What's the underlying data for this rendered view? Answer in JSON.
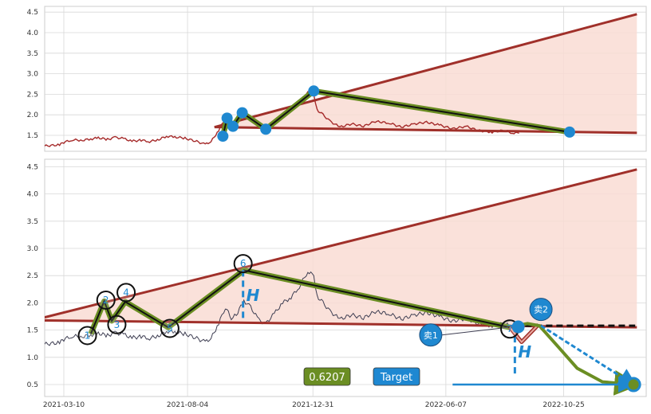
{
  "chart_data": {
    "type": "line",
    "x_ticks": [
      "2021-03-10",
      "2021-08-04",
      "2021-12-31",
      "2022-06-07",
      "2022-10-25"
    ],
    "y_ticks_top": [
      "1.5",
      "2.0",
      "2.5",
      "3.0",
      "3.5",
      "4.0",
      "4.5"
    ],
    "y_ticks_bottom": [
      "0.5",
      "1.0",
      "1.5",
      "2.0",
      "2.5",
      "3.0",
      "3.5",
      "4.0",
      "4.5"
    ],
    "ylim": [
      0.3,
      4.6
    ],
    "price_series": [
      [
        "2021-02-15",
        1.24
      ],
      [
        "2021-03-05",
        1.27
      ],
      [
        "2021-03-10",
        1.33
      ],
      [
        "2021-03-20",
        1.39
      ],
      [
        "2021-04-01",
        1.38
      ],
      [
        "2021-04-11",
        1.41
      ],
      [
        "2021-04-20",
        1.44
      ],
      [
        "2021-05-01",
        1.4
      ],
      [
        "2021-05-10",
        1.45
      ],
      [
        "2021-05-20",
        1.42
      ],
      [
        "2021-05-30",
        1.36
      ],
      [
        "2021-06-10",
        1.38
      ],
      [
        "2021-06-20",
        1.35
      ],
      [
        "2021-07-01",
        1.4
      ],
      [
        "2021-07-10",
        1.48
      ],
      [
        "2021-07-20",
        1.46
      ],
      [
        "2021-08-01",
        1.43
      ],
      [
        "2021-08-15",
        1.35
      ],
      [
        "2021-08-25",
        1.28
      ],
      [
        "2021-09-01",
        1.35
      ],
      [
        "2021-09-10",
        1.62
      ],
      [
        "2021-09-18",
        1.92
      ],
      [
        "2021-09-25",
        1.72
      ],
      [
        "2021-10-01",
        1.78
      ],
      [
        "2021-10-10",
        2.04
      ],
      [
        "2021-10-18",
        1.92
      ],
      [
        "2021-10-28",
        1.68
      ],
      [
        "2021-11-05",
        1.62
      ],
      [
        "2021-11-15",
        1.8
      ],
      [
        "2021-11-25",
        2.0
      ],
      [
        "2021-12-05",
        2.1
      ],
      [
        "2021-12-15",
        2.3
      ],
      [
        "2021-12-25",
        2.58
      ],
      [
        "2022-01-01",
        2.5
      ],
      [
        "2022-01-05",
        2.12
      ],
      [
        "2022-01-12",
        2.0
      ],
      [
        "2022-01-20",
        1.85
      ],
      [
        "2022-02-01",
        1.7
      ],
      [
        "2022-02-15",
        1.78
      ],
      [
        "2022-03-01",
        1.72
      ],
      [
        "2022-03-15",
        1.84
      ],
      [
        "2022-04-01",
        1.8
      ],
      [
        "2022-04-15",
        1.7
      ],
      [
        "2022-05-01",
        1.78
      ],
      [
        "2022-05-15",
        1.82
      ],
      [
        "2022-06-01",
        1.74
      ],
      [
        "2022-06-15",
        1.66
      ],
      [
        "2022-07-01",
        1.72
      ],
      [
        "2022-07-15",
        1.62
      ],
      [
        "2022-08-01",
        1.58
      ],
      [
        "2022-08-15",
        1.62
      ],
      [
        "2022-08-25",
        1.56
      ],
      [
        "2022-09-02",
        1.55
      ]
    ],
    "triangle": {
      "upper": [
        [
          "2021-09-05",
          1.7
        ],
        [
          "2023-01-20",
          4.45
        ]
      ],
      "lower": [
        [
          "2021-09-05",
          1.7
        ],
        [
          "2023-01-20",
          1.56
        ]
      ],
      "upper_bottom": [
        [
          "2021-02-01",
          1.68
        ],
        [
          "2023-01-20",
          4.45
        ]
      ],
      "lower_bottom": [
        [
          "2021-02-01",
          1.68
        ],
        [
          "2023-01-20",
          1.55
        ]
      ]
    },
    "zigzag_top": [
      [
        "2021-09-15",
        1.48
      ],
      [
        "2021-09-20",
        1.92
      ],
      [
        "2021-09-27",
        1.72
      ],
      [
        "2021-10-08",
        2.05
      ],
      [
        "2021-11-05",
        1.65
      ],
      [
        "2022-01-01",
        2.58
      ],
      [
        "2022-11-01",
        1.58
      ]
    ],
    "zigzag_bottom": [
      [
        "2021-04-11",
        1.43
      ],
      [
        "2021-04-27",
        2.03
      ],
      [
        "2021-05-06",
        1.67
      ],
      [
        "2021-05-22",
        2.02
      ],
      [
        "2021-07-12",
        1.55
      ],
      [
        "2021-10-10",
        2.6
      ],
      [
        "2022-08-22",
        1.55
      ]
    ],
    "pattern_labels": [
      "1",
      "2",
      "3",
      "4",
      "5",
      "6",
      "7"
    ],
    "pattern_label_points": [
      [
        "2021-04-07",
        1.4
      ],
      [
        "2021-04-29",
        2.05
      ],
      [
        "2021-05-12",
        1.6
      ],
      [
        "2021-05-23",
        2.19
      ],
      [
        "2021-07-14",
        1.53
      ],
      [
        "2021-10-09",
        2.72
      ],
      [
        "2022-08-22",
        1.52
      ]
    ],
    "sell_points": [
      {
        "label": "卖1",
        "date": "2022-05-20",
        "value": 1.41
      },
      {
        "label": "卖2",
        "date": "2022-09-28",
        "value": 1.88
      }
    ],
    "sell_point_2_line": [
      [
        "2022-09-28",
        1.58
      ],
      [
        "2023-01-16",
        0.5
      ]
    ],
    "projection_path": [
      [
        "2022-08-30",
        1.58
      ],
      [
        "2022-09-12",
        1.62
      ],
      [
        "2022-09-26",
        1.58
      ],
      [
        "2022-10-18",
        1.2
      ],
      [
        "2022-11-10",
        0.8
      ],
      [
        "2022-12-10",
        0.55
      ],
      [
        "2023-01-16",
        0.5
      ]
    ],
    "dip_path": [
      [
        "2022-08-22",
        1.55
      ],
      [
        "2022-09-05",
        1.28
      ],
      [
        "2022-09-25",
        1.6
      ]
    ],
    "dashed_extension": [
      [
        "2022-08-28",
        1.58
      ],
      [
        "2023-01-18",
        1.58
      ]
    ],
    "height_markers": [
      {
        "label": "H",
        "date": "2021-10-09",
        "top": 2.6,
        "bottom": 1.7
      },
      {
        "label": "H",
        "date": "2022-08-28",
        "top": 1.58,
        "bottom": 0.65
      }
    ],
    "target_label": "Target",
    "target_value": 0.5,
    "target_arrow": [
      [
        "2022-06-15",
        0.5
      ],
      [
        "2023-01-12",
        0.5
      ]
    ],
    "ratio_badge": "0.6207",
    "colors": {
      "price_top": "#a52a2a",
      "price_bottom": "#3e3e52",
      "triangle": "#a0302a",
      "fill": "#f9dcd4",
      "zigzag": "#6b8e23",
      "marker": "#1f88d0",
      "target_bg": "#1e88d2",
      "ratio_bg": "#6b8e23"
    }
  }
}
